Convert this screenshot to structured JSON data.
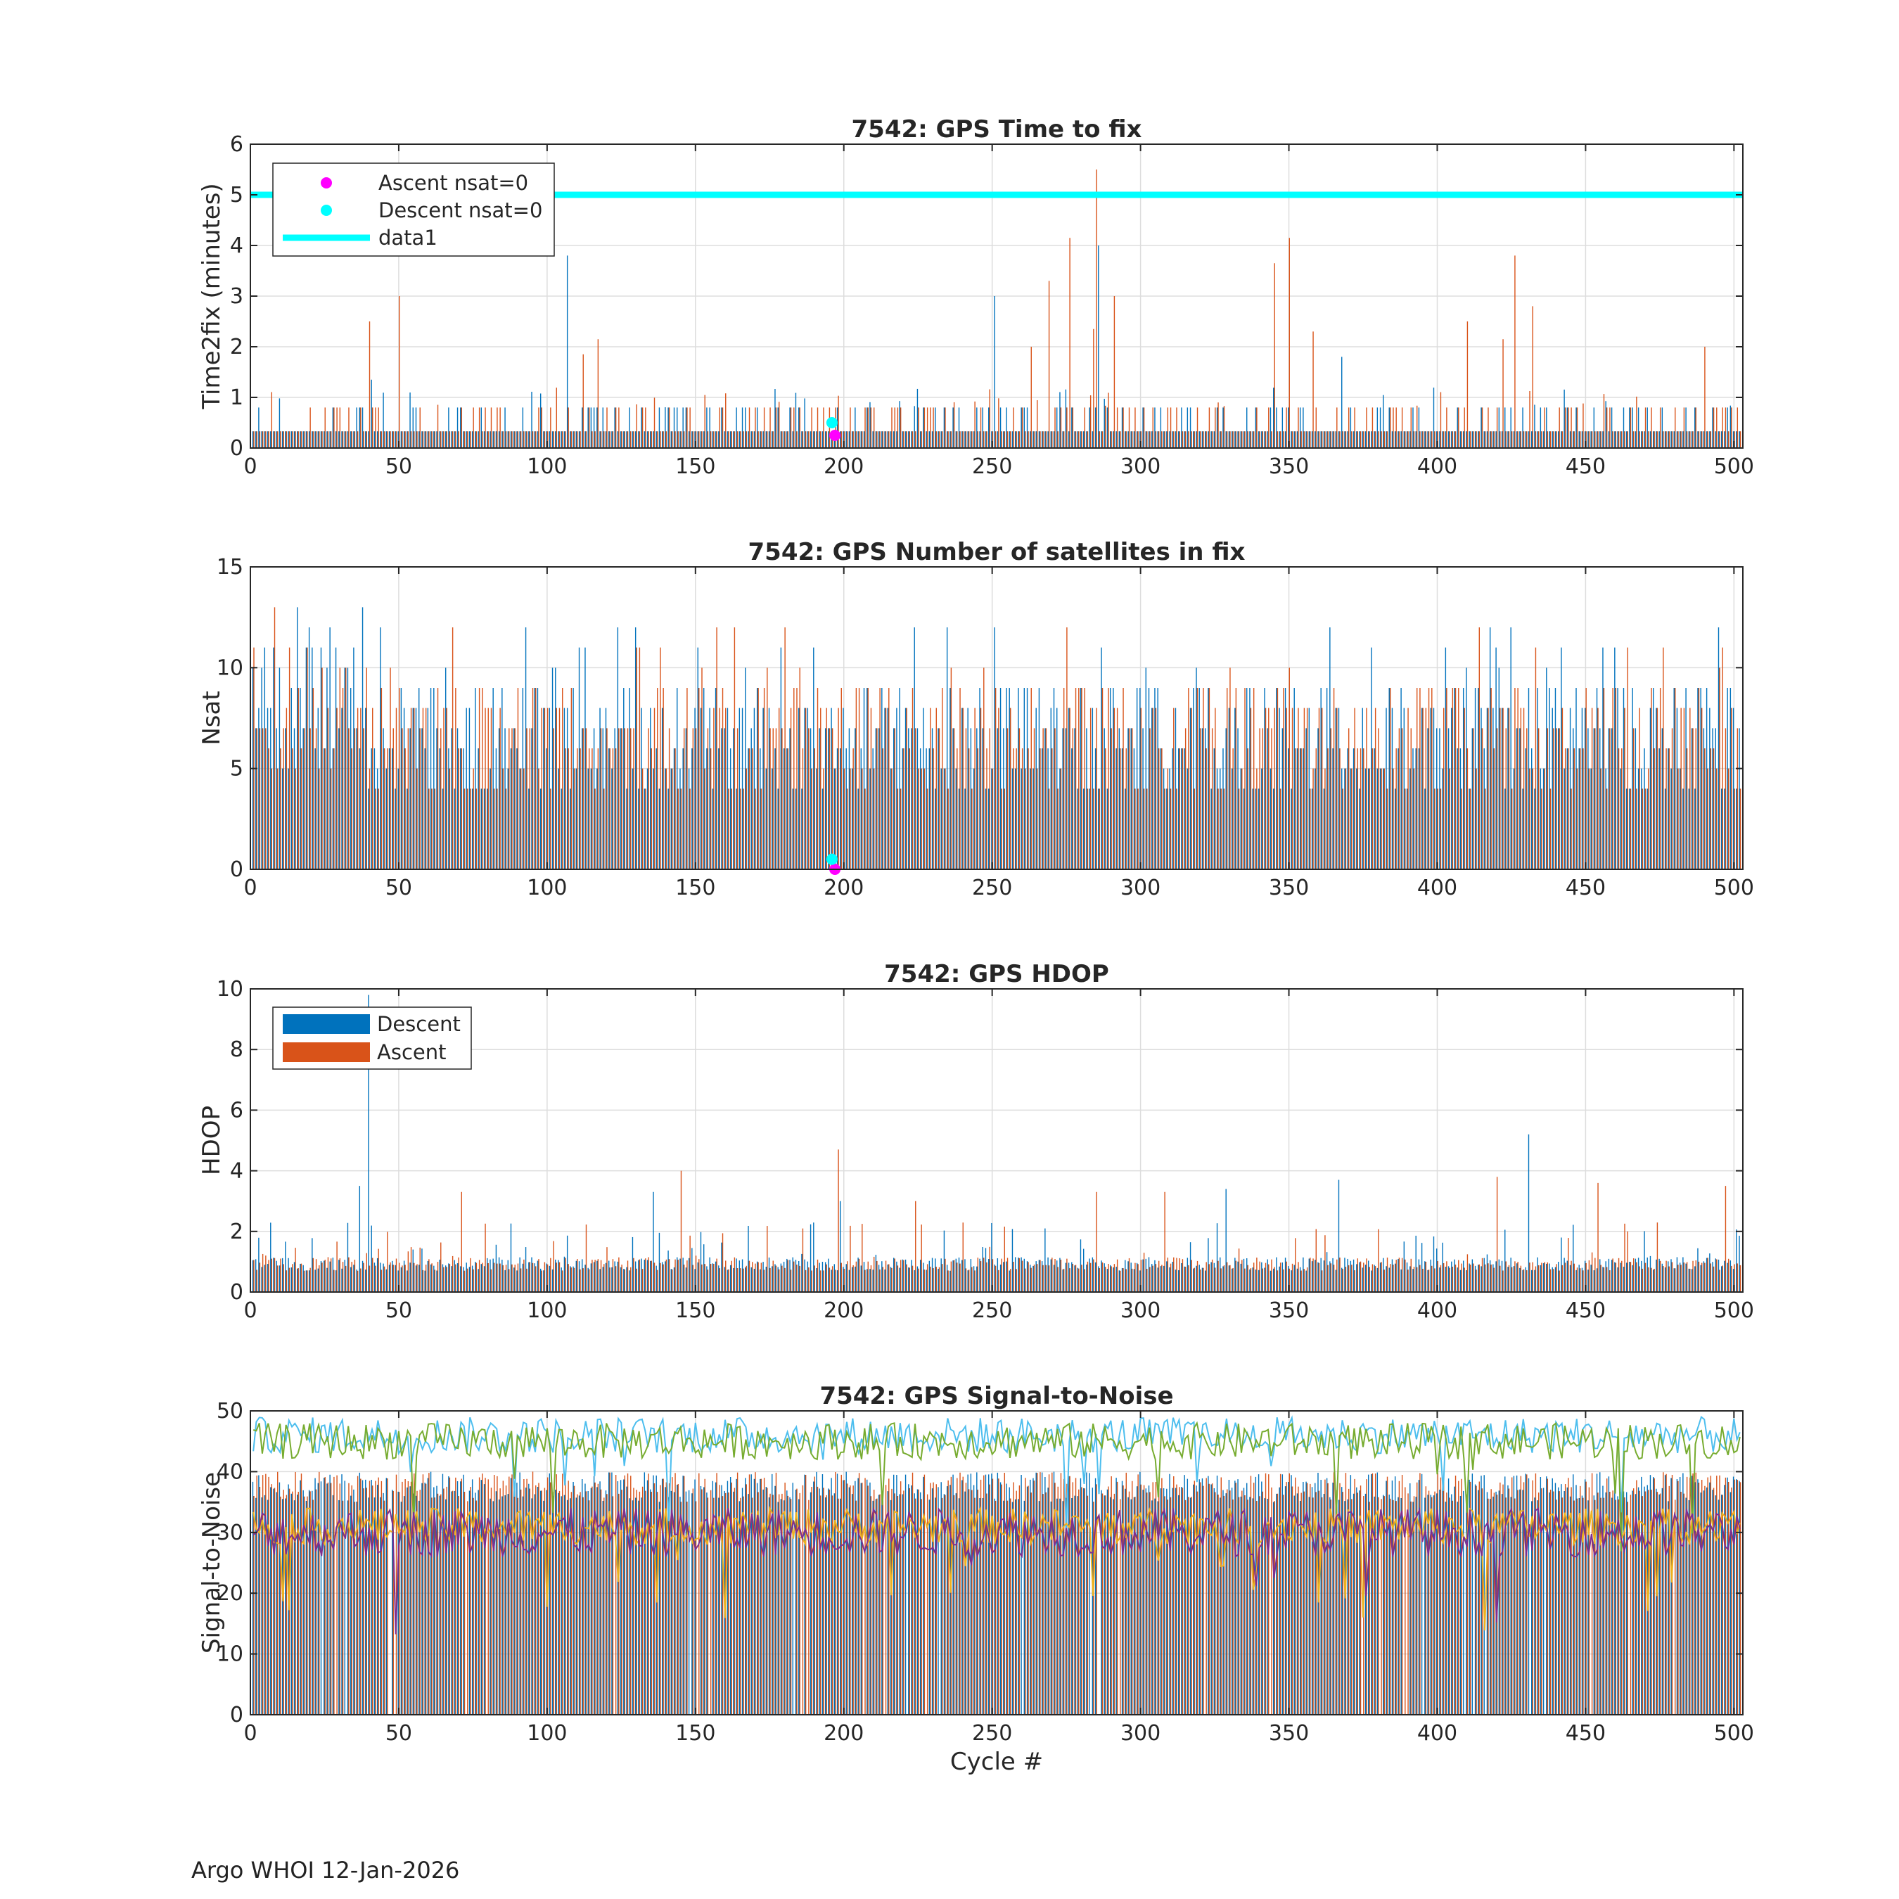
{
  "footer": "Argo WHOI 12-Jan-2026",
  "colors": {
    "descent": "#0072BD",
    "ascent": "#D95319",
    "cyan": "#00FFFF",
    "magenta": "#FF00FF",
    "grid": "#DDDDDD",
    "snr_line1": "#4DBEEE",
    "snr_line2": "#77AC30",
    "snr_line3": "#EDB120",
    "snr_line4": "#7E2F8E"
  },
  "chart_data": [
    {
      "id": "time2fix",
      "type": "bar",
      "title": "7542: GPS Time to fix",
      "xlabel": "",
      "ylabel": "Time2fix (minutes)",
      "xlim": [
        0,
        503
      ],
      "ylim": [
        0,
        6
      ],
      "xticks": [
        0,
        50,
        100,
        150,
        200,
        250,
        300,
        350,
        400,
        450,
        500
      ],
      "yticks": [
        0,
        1,
        2,
        3,
        4,
        5,
        6
      ],
      "grid": true,
      "legend_position": "top-left",
      "legend": [
        "Ascent nsat=0",
        "Descent nsat=0",
        "data1"
      ],
      "series": [
        {
          "name": "Descent",
          "baseline": 0.33,
          "typical_high": 0.8
        },
        {
          "name": "Ascent",
          "baseline": 0.33,
          "typical_high": 0.8
        }
      ],
      "spikes": [
        {
          "cycle": 40,
          "value": 2.5,
          "series": "Ascent"
        },
        {
          "cycle": 41,
          "value": 1.35,
          "series": "Descent"
        },
        {
          "cycle": 50,
          "value": 3.0,
          "series": "Ascent"
        },
        {
          "cycle": 107,
          "value": 3.8,
          "series": "Descent"
        },
        {
          "cycle": 112,
          "value": 1.85,
          "series": "Ascent"
        },
        {
          "cycle": 117,
          "value": 2.15,
          "series": "Ascent"
        },
        {
          "cycle": 251,
          "value": 3.0,
          "series": "Descent"
        },
        {
          "cycle": 263,
          "value": 2.0,
          "series": "Ascent"
        },
        {
          "cycle": 269,
          "value": 3.3,
          "series": "Ascent"
        },
        {
          "cycle": 276,
          "value": 4.15,
          "series": "Ascent"
        },
        {
          "cycle": 284,
          "value": 2.35,
          "series": "Ascent"
        },
        {
          "cycle": 285,
          "value": 5.5,
          "series": "Ascent"
        },
        {
          "cycle": 286,
          "value": 4.0,
          "series": "Descent"
        },
        {
          "cycle": 291,
          "value": 3.0,
          "series": "Ascent"
        },
        {
          "cycle": 345,
          "value": 3.65,
          "series": "Ascent"
        },
        {
          "cycle": 350,
          "value": 4.15,
          "series": "Ascent"
        },
        {
          "cycle": 358,
          "value": 2.3,
          "series": "Ascent"
        },
        {
          "cycle": 368,
          "value": 1.8,
          "series": "Descent"
        },
        {
          "cycle": 410,
          "value": 2.5,
          "series": "Ascent"
        },
        {
          "cycle": 422,
          "value": 2.15,
          "series": "Ascent"
        },
        {
          "cycle": 426,
          "value": 3.8,
          "series": "Ascent"
        },
        {
          "cycle": 432,
          "value": 2.8,
          "series": "Ascent"
        },
        {
          "cycle": 490,
          "value": 2.0,
          "series": "Ascent"
        }
      ],
      "threshold_line": {
        "name": "data1",
        "value": 5.0
      },
      "markers": [
        {
          "name": "Ascent nsat=0",
          "cycle": 197,
          "value": 0.25
        },
        {
          "name": "Descent nsat=0",
          "cycle": 196,
          "value": 0.5
        }
      ]
    },
    {
      "id": "nsat",
      "type": "bar",
      "title": "7542: GPS Number of satellites in fix",
      "xlabel": "",
      "ylabel": "Nsat",
      "xlim": [
        0,
        503
      ],
      "ylim": [
        0,
        15
      ],
      "xticks": [
        0,
        50,
        100,
        150,
        200,
        250,
        300,
        350,
        400,
        450,
        500
      ],
      "yticks": [
        0,
        5,
        10,
        15
      ],
      "grid": true,
      "series": [
        {
          "name": "Descent",
          "typical_range": [
            4,
            10
          ],
          "max": 13
        },
        {
          "name": "Ascent",
          "typical_range": [
            4,
            11
          ],
          "max": 13
        }
      ],
      "markers": [
        {
          "name": "Ascent nsat=0",
          "cycle": 197,
          "value": 0
        },
        {
          "name": "Descent nsat=0",
          "cycle": 196,
          "value": 0.5
        }
      ]
    },
    {
      "id": "hdop",
      "type": "bar",
      "title": "7542: GPS HDOP",
      "xlabel": "",
      "ylabel": "HDOP",
      "xlim": [
        0,
        503
      ],
      "ylim": [
        0,
        10
      ],
      "xticks": [
        0,
        50,
        100,
        150,
        200,
        250,
        300,
        350,
        400,
        450,
        500
      ],
      "yticks": [
        0,
        2,
        4,
        6,
        8,
        10
      ],
      "grid": true,
      "legend_position": "top-left",
      "legend": [
        "Descent",
        "Ascent"
      ],
      "series": [
        {
          "name": "Descent",
          "typical_range": [
            0.7,
            1.2
          ]
        },
        {
          "name": "Ascent",
          "typical_range": [
            0.7,
            1.2
          ]
        }
      ],
      "spikes": [
        {
          "cycle": 40,
          "value": 9.8,
          "series": "Descent"
        },
        {
          "cycle": 37,
          "value": 3.5,
          "series": "Descent"
        },
        {
          "cycle": 71,
          "value": 3.3,
          "series": "Ascent"
        },
        {
          "cycle": 136,
          "value": 3.3,
          "series": "Descent"
        },
        {
          "cycle": 145,
          "value": 4.0,
          "series": "Ascent"
        },
        {
          "cycle": 198,
          "value": 4.7,
          "series": "Ascent"
        },
        {
          "cycle": 199,
          "value": 3.0,
          "series": "Descent"
        },
        {
          "cycle": 224,
          "value": 3.0,
          "series": "Ascent"
        },
        {
          "cycle": 285,
          "value": 3.3,
          "series": "Ascent"
        },
        {
          "cycle": 308,
          "value": 3.3,
          "series": "Ascent"
        },
        {
          "cycle": 329,
          "value": 3.4,
          "series": "Descent"
        },
        {
          "cycle": 367,
          "value": 3.7,
          "series": "Descent"
        },
        {
          "cycle": 420,
          "value": 3.8,
          "series": "Ascent"
        },
        {
          "cycle": 431,
          "value": 5.2,
          "series": "Descent"
        },
        {
          "cycle": 454,
          "value": 3.6,
          "series": "Ascent"
        },
        {
          "cycle": 497,
          "value": 3.5,
          "series": "Ascent"
        }
      ]
    },
    {
      "id": "snr",
      "type": "line",
      "title": "7542: GPS Signal-to-Noise",
      "xlabel": "Cycle #",
      "ylabel": "Signal-to-Noise",
      "xlim": [
        0,
        503
      ],
      "ylim": [
        0,
        50
      ],
      "xticks": [
        0,
        50,
        100,
        150,
        200,
        250,
        300,
        350,
        400,
        450,
        500
      ],
      "yticks": [
        0,
        10,
        20,
        30,
        40,
        50
      ],
      "grid": true,
      "bars": [
        {
          "name": "Descent",
          "typical_range": [
            35,
            40
          ]
        },
        {
          "name": "Ascent",
          "typical_range": [
            35,
            40
          ]
        }
      ],
      "lines": [
        {
          "name": "max descent",
          "mean": 46,
          "spread": 3
        },
        {
          "name": "max ascent",
          "mean": 45,
          "spread": 3
        },
        {
          "name": "mean ascent",
          "mean": 31,
          "spread": 3
        },
        {
          "name": "mean descent",
          "mean": 30,
          "spread": 4
        }
      ]
    }
  ]
}
